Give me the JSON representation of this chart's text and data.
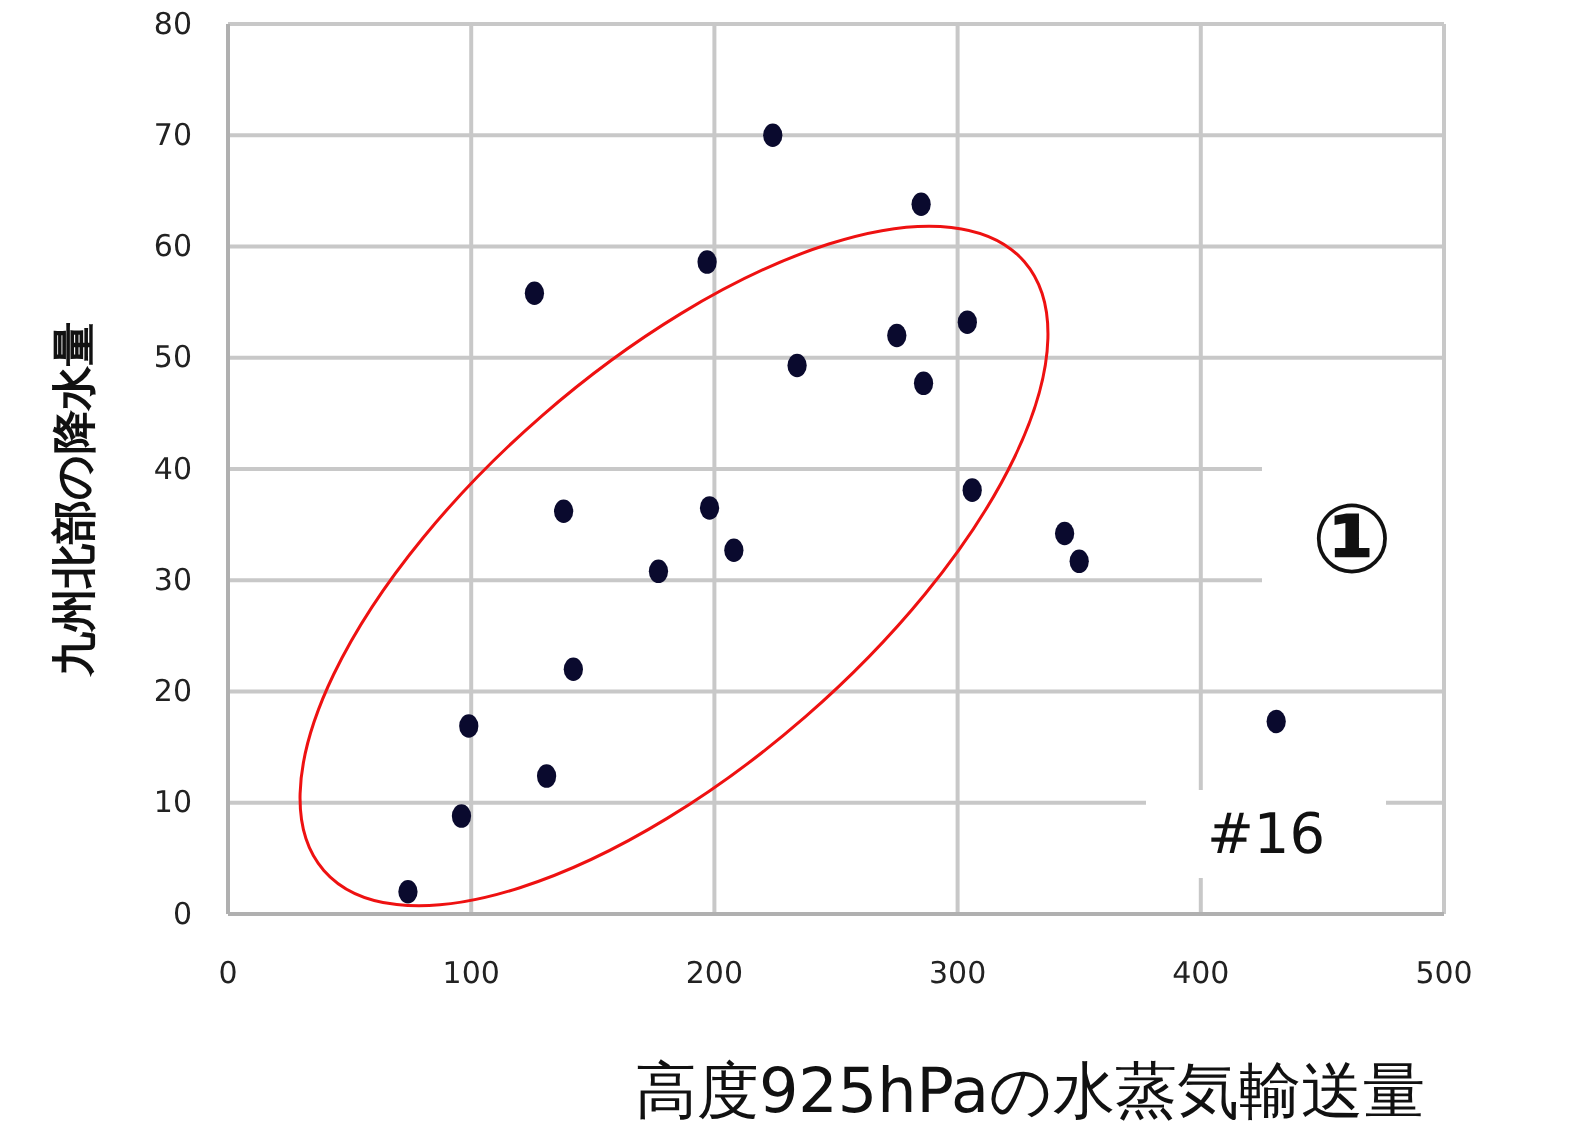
{
  "chart_data": {
    "type": "scatter",
    "xlabel": "高度925hPaの水蒸気輸送量",
    "ylabel": "九州北部の降水量",
    "x": [
      74,
      96,
      99,
      131,
      142,
      138,
      126,
      177,
      198,
      208,
      197,
      224,
      234,
      275,
      285,
      286,
      304,
      306,
      344,
      350,
      431
    ],
    "series": [
      {
        "color": "#0a0a2e",
        "values": [
          2,
          8.8,
          16.9,
          12.4,
          22,
          36.2,
          55.8,
          30.8,
          36.5,
          32.7,
          58.6,
          70,
          49.3,
          52,
          63.8,
          47.7,
          53.2,
          38.1,
          34.2,
          31.7,
          17.3
        ]
      }
    ],
    "xlim": [
      0,
      500
    ],
    "xticks": [
      0,
      100,
      200,
      300,
      400,
      500
    ],
    "ylim": [
      0,
      80
    ],
    "yticks": [
      0,
      10,
      20,
      30,
      40,
      50,
      60,
      70,
      80
    ],
    "grid": true,
    "marker": "circle",
    "annotations": [
      "①",
      "#16"
    ]
  }
}
